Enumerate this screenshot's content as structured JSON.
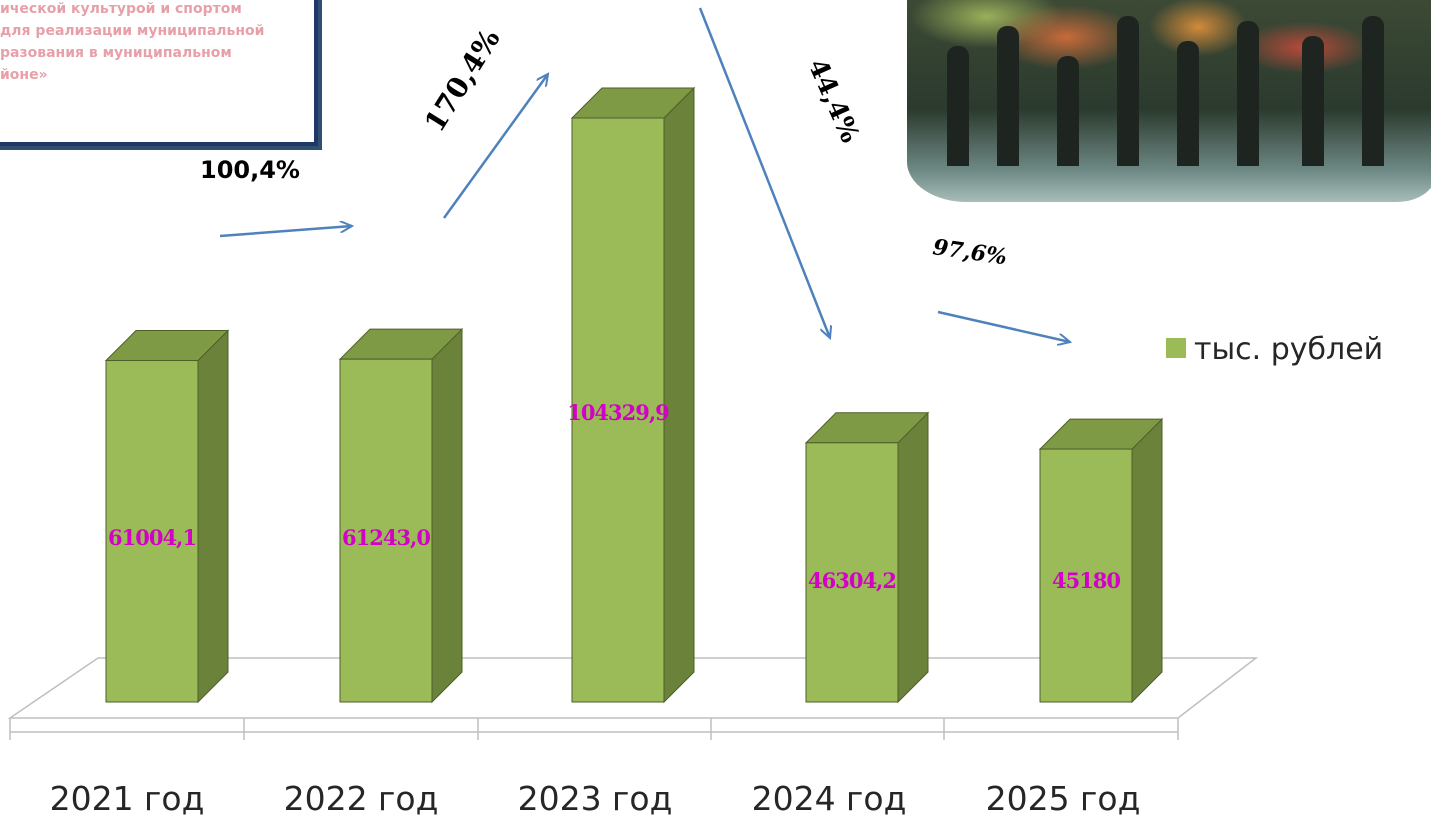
{
  "title_box": {
    "lines": [
      "ической культурой и спортом",
      " для реализации муниципальной",
      "разования в муниципальном",
      "йоне»"
    ]
  },
  "photo": {
    "description_icon": "photo-crowd-with-flowers"
  },
  "chart_data": {
    "type": "bar",
    "categories": [
      "2021 год",
      "2022 год",
      "2023 год",
      "2024 год",
      "2025 год"
    ],
    "values": [
      61004.1,
      61243.0,
      104329.9,
      46304.2,
      45180
    ],
    "value_labels": [
      "61004,1",
      "61243,0",
      "104329,9",
      "46304,2",
      "45180"
    ],
    "legend": {
      "label": "тыс. рублей",
      "position": "right"
    },
    "growth_labels": [
      "100,4%",
      "170,4%",
      "44,4%",
      "97,6%"
    ],
    "bar_color": "#9bbb59",
    "bar_side_color": "#6b823a",
    "bar_top_color": "#7f9a45",
    "value_label_color": "#d400c8",
    "arrow_color": "#4f81bd",
    "grid": false,
    "style": "3d"
  }
}
